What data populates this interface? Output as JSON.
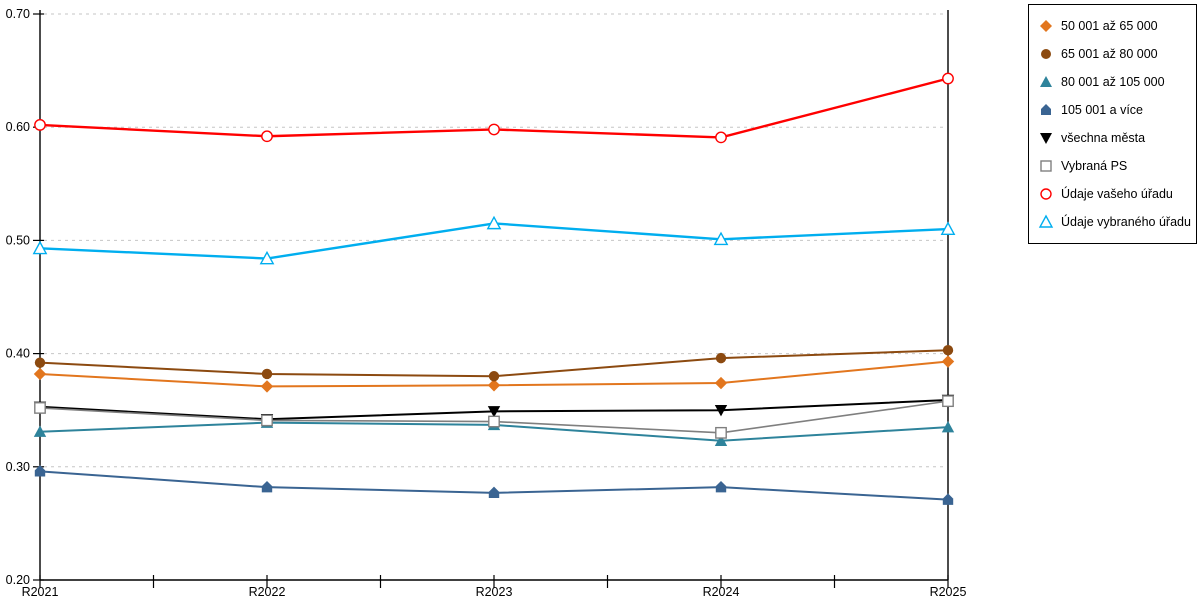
{
  "chart_data": {
    "type": "line",
    "title": "",
    "xlabel": "",
    "ylabel": "",
    "categories": [
      "R2021",
      "R2022",
      "R2023",
      "R2024",
      "R2025"
    ],
    "ylim": [
      0.2,
      0.7
    ],
    "ytick_labels": [
      "0.70",
      "0.60",
      "0.50",
      "0.40",
      "0.30",
      "0.20"
    ],
    "ytick_values": [
      0.7,
      0.6,
      0.5,
      0.4,
      0.3,
      0.2
    ],
    "grid": "horizontal-dashed",
    "legend_position": "top-right-boxed",
    "axis_color": "#000000",
    "grid_color": "#c6c6c6",
    "series": [
      {
        "name": "50 001 až 65 000",
        "marker": "diamond",
        "fill": "solid",
        "color": "#e2761e",
        "values": [
          0.382,
          0.371,
          0.372,
          0.374,
          0.393
        ]
      },
      {
        "name": "65 001 až 80 000",
        "marker": "circle",
        "fill": "solid",
        "color": "#8c4a10",
        "values": [
          0.392,
          0.382,
          0.38,
          0.396,
          0.403
        ]
      },
      {
        "name": "80 001 až 105 000",
        "marker": "triangle",
        "fill": "solid",
        "color": "#2e839b",
        "values": [
          0.331,
          0.339,
          0.337,
          0.323,
          0.335
        ]
      },
      {
        "name": "105 001 a více",
        "marker": "pentagon",
        "fill": "solid",
        "color": "#3a6492",
        "values": [
          0.296,
          0.282,
          0.277,
          0.282,
          0.271
        ]
      },
      {
        "name": "všechna města",
        "marker": "triangle-down",
        "fill": "solid",
        "color": "#000000",
        "values": [
          0.353,
          0.342,
          0.349,
          0.35,
          0.359
        ]
      },
      {
        "name": "Vybraná PS",
        "marker": "square",
        "fill": "open",
        "color": "#7f7f7f",
        "values": [
          0.352,
          0.341,
          0.34,
          0.33,
          0.358
        ]
      },
      {
        "name": "Údaje vašeho úřadu",
        "marker": "circle",
        "fill": "open",
        "color": "#ff0000",
        "values": [
          0.602,
          0.592,
          0.598,
          0.591,
          0.643
        ]
      },
      {
        "name": "Údaje vybraného úřadu",
        "marker": "triangle",
        "fill": "open",
        "color": "#00aeef",
        "values": [
          0.493,
          0.484,
          0.515,
          0.501,
          0.51
        ]
      }
    ]
  }
}
